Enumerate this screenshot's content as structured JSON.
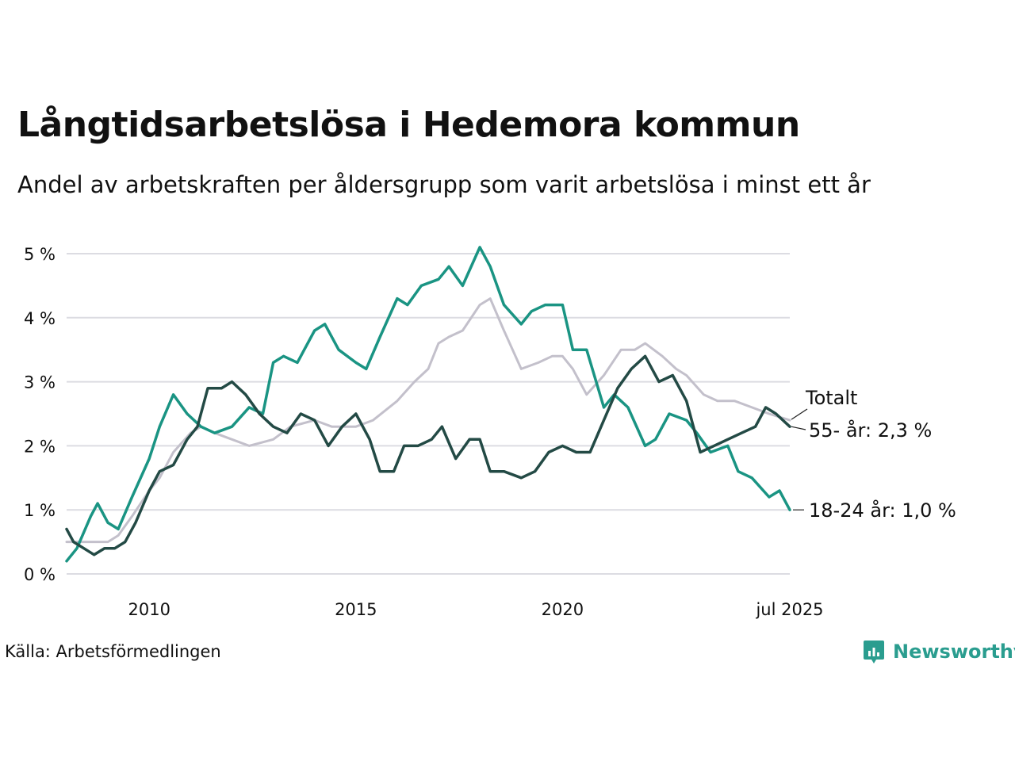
{
  "title": "Långtidsarbetslösa i Hedemora kommun",
  "subtitle": "Andel av arbetskraften per åldersgrupp som varit arbetslösa i minst ett år",
  "source": "Källa: Arbetsförmedlingen",
  "brand": "Newsworthy",
  "colors": {
    "young": "#1a9483",
    "old": "#234a45",
    "total": "#c3c0cb",
    "grid": "#dcdce2"
  },
  "chart_data": {
    "type": "line",
    "y_ticks": [
      {
        "value": 0,
        "label": "0 %"
      },
      {
        "value": 1,
        "label": "1 %"
      },
      {
        "value": 2,
        "label": "2 %"
      },
      {
        "value": 3,
        "label": "3 %"
      },
      {
        "value": 4,
        "label": "4 %"
      },
      {
        "value": 5,
        "label": "5 %"
      }
    ],
    "x_ticks": [
      {
        "value": "2010-01",
        "label": "2010"
      },
      {
        "value": "2015-01",
        "label": "2015"
      },
      {
        "value": "2020-01",
        "label": "2020"
      },
      {
        "value": "2025-07",
        "label": "jul 2025"
      }
    ],
    "x_range": [
      "2008-01",
      "2025-07"
    ],
    "y_range": [
      0,
      5.3
    ],
    "grid": true,
    "series": [
      {
        "key": "total",
        "name": "Totalt",
        "points": [
          [
            "2008-01",
            0.5
          ],
          [
            "2008-04",
            0.5
          ],
          [
            "2008-08",
            0.5
          ],
          [
            "2009-01",
            0.5
          ],
          [
            "2009-04",
            0.6
          ],
          [
            "2009-08",
            0.9
          ],
          [
            "2010-01",
            1.3
          ],
          [
            "2010-04",
            1.5
          ],
          [
            "2010-08",
            1.9
          ],
          [
            "2011-01",
            2.2
          ],
          [
            "2011-04",
            2.3
          ],
          [
            "2011-08",
            2.2
          ],
          [
            "2012-01",
            2.1
          ],
          [
            "2012-06",
            2.0
          ],
          [
            "2013-01",
            2.1
          ],
          [
            "2013-06",
            2.3
          ],
          [
            "2014-01",
            2.4
          ],
          [
            "2014-06",
            2.3
          ],
          [
            "2015-01",
            2.3
          ],
          [
            "2015-06",
            2.4
          ],
          [
            "2016-01",
            2.7
          ],
          [
            "2016-06",
            3.0
          ],
          [
            "2016-10",
            3.2
          ],
          [
            "2017-01",
            3.6
          ],
          [
            "2017-04",
            3.7
          ],
          [
            "2017-08",
            3.8
          ],
          [
            "2018-01",
            4.2
          ],
          [
            "2018-04",
            4.3
          ],
          [
            "2018-08",
            3.8
          ],
          [
            "2019-01",
            3.2
          ],
          [
            "2019-06",
            3.3
          ],
          [
            "2019-10",
            3.4
          ],
          [
            "2020-01",
            3.4
          ],
          [
            "2020-04",
            3.2
          ],
          [
            "2020-08",
            2.8
          ],
          [
            "2021-01",
            3.1
          ],
          [
            "2021-06",
            3.5
          ],
          [
            "2021-10",
            3.5
          ],
          [
            "2022-01",
            3.6
          ],
          [
            "2022-06",
            3.4
          ],
          [
            "2022-10",
            3.2
          ],
          [
            "2023-01",
            3.1
          ],
          [
            "2023-06",
            2.8
          ],
          [
            "2023-10",
            2.7
          ],
          [
            "2024-03",
            2.7
          ],
          [
            "2024-08",
            2.6
          ],
          [
            "2025-01",
            2.5
          ],
          [
            "2025-07",
            2.4
          ]
        ]
      },
      {
        "key": "old",
        "name": "55- år",
        "value_label": "2,3 %",
        "points": [
          [
            "2008-01",
            0.7
          ],
          [
            "2008-03",
            0.5
          ],
          [
            "2008-06",
            0.4
          ],
          [
            "2008-09",
            0.3
          ],
          [
            "2008-12",
            0.4
          ],
          [
            "2009-03",
            0.4
          ],
          [
            "2009-06",
            0.5
          ],
          [
            "2009-09",
            0.8
          ],
          [
            "2010-01",
            1.3
          ],
          [
            "2010-04",
            1.6
          ],
          [
            "2010-08",
            1.7
          ],
          [
            "2010-12",
            2.1
          ],
          [
            "2011-03",
            2.3
          ],
          [
            "2011-06",
            2.9
          ],
          [
            "2011-10",
            2.9
          ],
          [
            "2012-01",
            3.0
          ],
          [
            "2012-05",
            2.8
          ],
          [
            "2012-09",
            2.5
          ],
          [
            "2013-01",
            2.3
          ],
          [
            "2013-05",
            2.2
          ],
          [
            "2013-09",
            2.5
          ],
          [
            "2014-01",
            2.4
          ],
          [
            "2014-05",
            2.0
          ],
          [
            "2014-09",
            2.3
          ],
          [
            "2015-01",
            2.5
          ],
          [
            "2015-05",
            2.1
          ],
          [
            "2015-08",
            1.6
          ],
          [
            "2015-12",
            1.6
          ],
          [
            "2016-03",
            2.0
          ],
          [
            "2016-07",
            2.0
          ],
          [
            "2016-11",
            2.1
          ],
          [
            "2017-02",
            2.3
          ],
          [
            "2017-06",
            1.8
          ],
          [
            "2017-10",
            2.1
          ],
          [
            "2018-01",
            2.1
          ],
          [
            "2018-04",
            1.6
          ],
          [
            "2018-08",
            1.6
          ],
          [
            "2019-01",
            1.5
          ],
          [
            "2019-05",
            1.6
          ],
          [
            "2019-09",
            1.9
          ],
          [
            "2020-01",
            2.0
          ],
          [
            "2020-05",
            1.9
          ],
          [
            "2020-09",
            1.9
          ],
          [
            "2021-01",
            2.4
          ],
          [
            "2021-05",
            2.9
          ],
          [
            "2021-09",
            3.2
          ],
          [
            "2022-01",
            3.4
          ],
          [
            "2022-05",
            3.0
          ],
          [
            "2022-09",
            3.1
          ],
          [
            "2023-01",
            2.7
          ],
          [
            "2023-05",
            1.9
          ],
          [
            "2023-09",
            2.0
          ],
          [
            "2024-01",
            2.1
          ],
          [
            "2024-05",
            2.2
          ],
          [
            "2024-09",
            2.3
          ],
          [
            "2024-12",
            2.6
          ],
          [
            "2025-03",
            2.5
          ],
          [
            "2025-07",
            2.3
          ]
        ]
      },
      {
        "key": "young",
        "name": "18-24 år",
        "value_label": "1,0 %",
        "points": [
          [
            "2008-01",
            0.2
          ],
          [
            "2008-04",
            0.4
          ],
          [
            "2008-08",
            0.9
          ],
          [
            "2008-10",
            1.1
          ],
          [
            "2009-01",
            0.8
          ],
          [
            "2009-04",
            0.7
          ],
          [
            "2009-08",
            1.2
          ],
          [
            "2010-01",
            1.8
          ],
          [
            "2010-04",
            2.3
          ],
          [
            "2010-08",
            2.8
          ],
          [
            "2010-12",
            2.5
          ],
          [
            "2011-04",
            2.3
          ],
          [
            "2011-08",
            2.2
          ],
          [
            "2012-01",
            2.3
          ],
          [
            "2012-06",
            2.6
          ],
          [
            "2012-10",
            2.5
          ],
          [
            "2013-01",
            3.3
          ],
          [
            "2013-04",
            3.4
          ],
          [
            "2013-08",
            3.3
          ],
          [
            "2014-01",
            3.8
          ],
          [
            "2014-04",
            3.9
          ],
          [
            "2014-08",
            3.5
          ],
          [
            "2015-01",
            3.3
          ],
          [
            "2015-04",
            3.2
          ],
          [
            "2015-08",
            3.7
          ],
          [
            "2016-01",
            4.3
          ],
          [
            "2016-04",
            4.2
          ],
          [
            "2016-08",
            4.5
          ],
          [
            "2017-01",
            4.6
          ],
          [
            "2017-04",
            4.8
          ],
          [
            "2017-08",
            4.5
          ],
          [
            "2018-01",
            5.1
          ],
          [
            "2018-04",
            4.8
          ],
          [
            "2018-08",
            4.2
          ],
          [
            "2019-01",
            3.9
          ],
          [
            "2019-04",
            4.1
          ],
          [
            "2019-08",
            4.2
          ],
          [
            "2020-01",
            4.2
          ],
          [
            "2020-04",
            3.5
          ],
          [
            "2020-08",
            3.5
          ],
          [
            "2021-01",
            2.6
          ],
          [
            "2021-04",
            2.8
          ],
          [
            "2021-08",
            2.6
          ],
          [
            "2022-01",
            2.0
          ],
          [
            "2022-04",
            2.1
          ],
          [
            "2022-08",
            2.5
          ],
          [
            "2023-01",
            2.4
          ],
          [
            "2023-04",
            2.2
          ],
          [
            "2023-08",
            1.9
          ],
          [
            "2024-01",
            2.0
          ],
          [
            "2024-04",
            1.6
          ],
          [
            "2024-08",
            1.5
          ],
          [
            "2025-01",
            1.2
          ],
          [
            "2025-04",
            1.3
          ],
          [
            "2025-07",
            1.0
          ]
        ]
      }
    ]
  }
}
